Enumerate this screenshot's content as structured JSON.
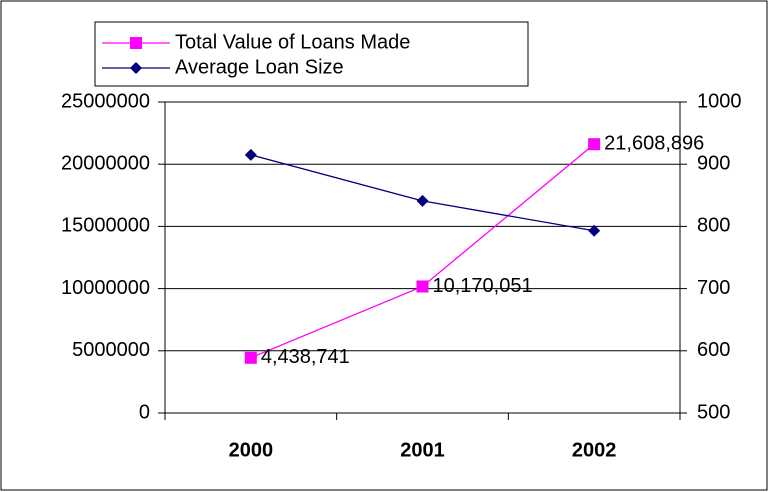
{
  "chart_data": {
    "type": "line",
    "categories": [
      "2000",
      "2001",
      "2002"
    ],
    "series": [
      {
        "name": "Total Value of Loans Made",
        "color": "#ff00ff",
        "marker": "square",
        "values": [
          4438741,
          10170051,
          21608896
        ],
        "value_labels": [
          "4,438,741",
          "10,170,051",
          "21,608,896"
        ]
      },
      {
        "name": "Average Loan Size",
        "color": "#000080",
        "marker": "diamond",
        "axis": "y2",
        "values": [
          915,
          841,
          793
        ]
      }
    ],
    "ylim": [
      0,
      25000000
    ],
    "yticks": [
      0,
      5000000,
      10000000,
      15000000,
      20000000,
      25000000
    ],
    "y2lim": [
      500,
      1000
    ],
    "y2ticks": [
      500,
      600,
      700,
      800,
      900,
      1000
    ],
    "grid": true
  }
}
